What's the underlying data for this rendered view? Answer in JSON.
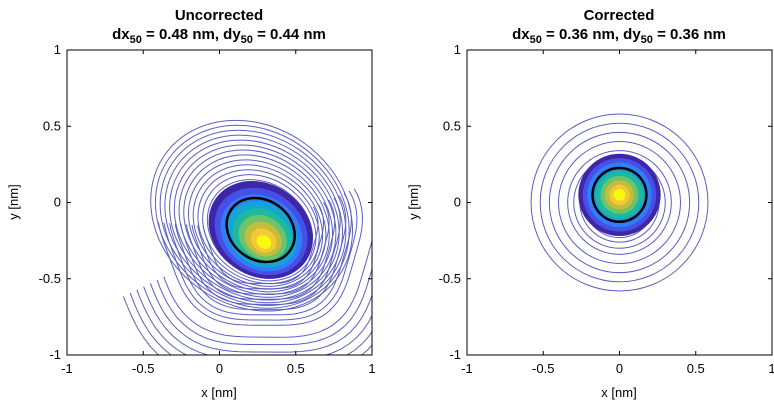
{
  "chart_data": [
    {
      "type": "contour",
      "title_line1": "Uncorrected",
      "title_line2": {
        "x_prefix": "dx",
        "x_sub": "50",
        "x_value": " = 0.48 nm, ",
        "y_prefix": "dy",
        "y_sub": "50",
        "y_value": " = 0.44 nm"
      },
      "xlabel": "x [nm]",
      "ylabel": "y [nm]",
      "xlim": [
        -1,
        1
      ],
      "ylim": [
        -1,
        1
      ],
      "xticks": [
        "-1",
        "-0.5",
        "0",
        "0.5",
        "1"
      ],
      "yticks": [
        "-1",
        "-0.5",
        "0",
        "0.5",
        "1"
      ],
      "core": {
        "cx": 0.27,
        "cy": -0.18,
        "rx": 0.24,
        "ry": 0.2,
        "rotation_deg": -35
      },
      "dx50": 0.48,
      "dy50": 0.44
    },
    {
      "type": "contour",
      "title_line1": "Corrected",
      "title_line2": {
        "x_prefix": "dx",
        "x_sub": "50",
        "x_value": " = 0.36 nm, ",
        "y_prefix": "dy",
        "y_sub": "50",
        "y_value": " = 0.36 nm"
      },
      "xlabel": "x [nm]",
      "ylabel": "y [nm]",
      "xlim": [
        -1,
        1
      ],
      "ylim": [
        -1,
        1
      ],
      "xticks": [
        "-1",
        "-0.5",
        "0",
        "0.5",
        "1"
      ],
      "yticks": [
        "-1",
        "-0.5",
        "0",
        "0.5",
        "1"
      ],
      "core": {
        "cx": 0.0,
        "cy": 0.05,
        "rx": 0.18,
        "ry": 0.18,
        "rotation_deg": 0
      },
      "dx50": 0.36,
      "dy50": 0.36
    }
  ],
  "colors": {
    "contour_line": "#5a5fc0",
    "colormap": [
      "#3e26a8",
      "#4750e6",
      "#2f7ff8",
      "#14a4d6",
      "#1db8a0",
      "#6cc36a",
      "#c4bd3c",
      "#f3c936",
      "#f9fb0e"
    ],
    "half_max_contour": "#000000"
  }
}
